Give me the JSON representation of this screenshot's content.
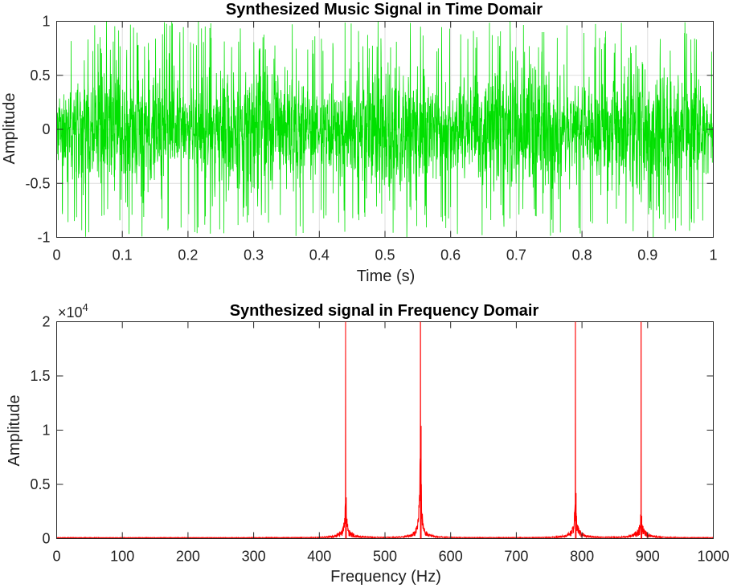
{
  "chart_data": [
    {
      "type": "line",
      "title": "Synthesized Music Signal in Time Domair",
      "xlabel": "Time (s)",
      "ylabel": "Amplitude",
      "xlim": [
        0,
        1
      ],
      "ylim": [
        -1,
        1
      ],
      "xticks": [
        "0",
        "0.1",
        "0.2",
        "0.3",
        "0.4",
        "0.5",
        "0.6",
        "0.7",
        "0.8",
        "0.9",
        "1"
      ],
      "yticks": [
        "1",
        "0.5",
        "0",
        "-0.5",
        "-1"
      ],
      "grid": true,
      "color": "#00e000",
      "signal": {
        "frequencies_hz": [
          440,
          554,
          790,
          890
        ],
        "amplitude_peak": 1.0,
        "envelope_period_s": 0.2
      }
    },
    {
      "type": "line",
      "title": "Synthesized signal in Frequency Domair",
      "xlabel": "Frequency (Hz)",
      "ylabel": "Amplitude",
      "xlim": [
        0,
        1000
      ],
      "ylim": [
        0,
        20000
      ],
      "xticks": [
        "0",
        "100",
        "200",
        "300",
        "400",
        "500",
        "600",
        "700",
        "800",
        "900",
        "1000"
      ],
      "yticks": [
        "2",
        "1.5",
        "1",
        "0.5",
        "0"
      ],
      "exponent_label": "×10",
      "exponent_power": "4",
      "grid": false,
      "color": "#ff0000",
      "peaks": [
        {
          "x": 440,
          "y": 20000,
          "sub": 3800
        },
        {
          "x": 554,
          "y": 20000,
          "sub": 10400
        },
        {
          "x": 790,
          "y": 20000,
          "sub": 4200
        },
        {
          "x": 890,
          "y": 20000,
          "sub": 2100
        }
      ]
    }
  ]
}
